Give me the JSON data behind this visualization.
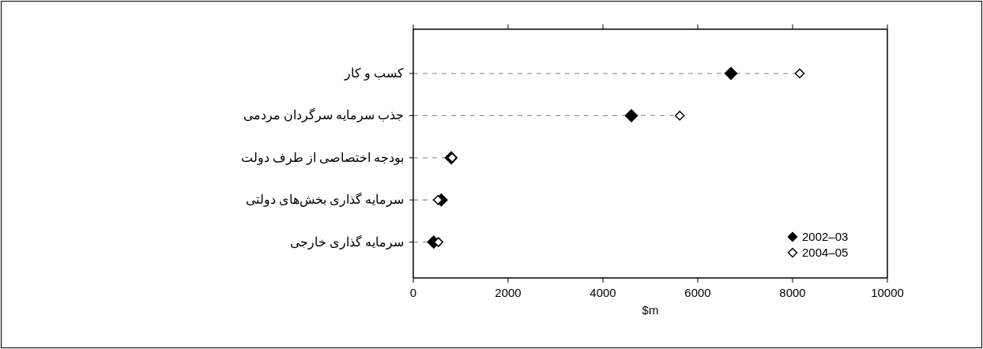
{
  "chart_data": {
    "type": "scatter",
    "xlabel": "$m",
    "categories": [
      "کسب و کار",
      "جذب سرمایه سرگردان مردمی",
      "بودجه اختصاصی از طرف دولت",
      "سرمایه گذاری بخش‌های دولتی",
      "سرمایه گذاری خارجی"
    ],
    "orientation": "horizontal",
    "series": [
      {
        "name": "2002–03",
        "color": "#000000",
        "values": [
          6700,
          4600,
          800,
          590,
          430
        ]
      },
      {
        "name": "2004–05",
        "color": "#ffffff",
        "values": [
          8150,
          5620,
          820,
          520,
          530
        ]
      }
    ],
    "xlim": [
      0,
      10000
    ],
    "xticks": [
      0,
      2000,
      4000,
      6000,
      8000,
      10000
    ],
    "marker": "diamond",
    "legend": "bottom right",
    "grid": false
  }
}
